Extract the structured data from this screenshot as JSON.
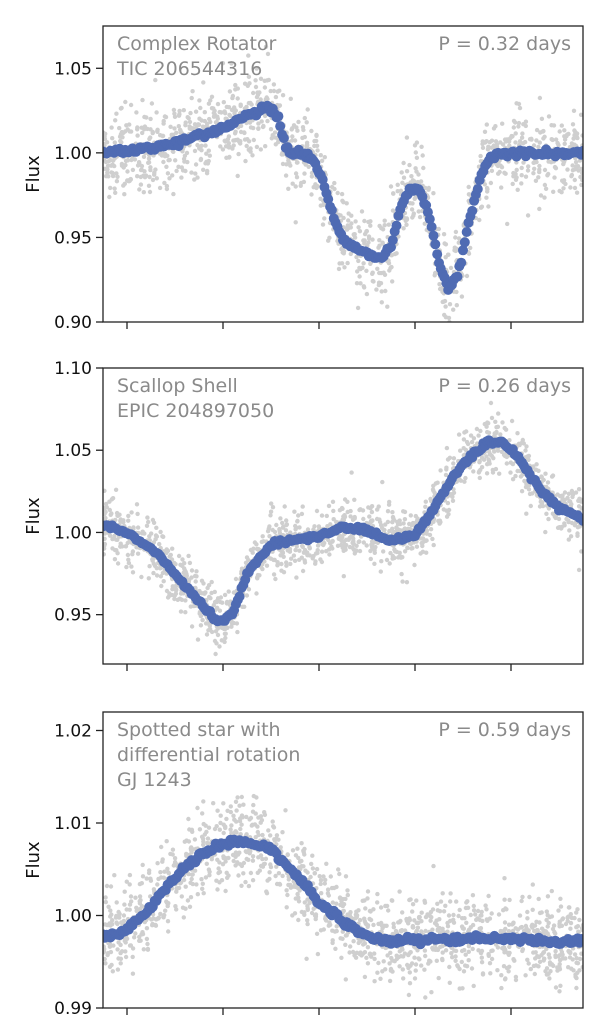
{
  "colors": {
    "binned": "#4f6bb3",
    "raw": "#cfcfcf",
    "annotation": "#8a8a8a",
    "axis": "#222222"
  },
  "chart_data": [
    {
      "type": "scatter",
      "title": "",
      "annotation_lines": [
        "Complex Rotator",
        "TIC 206544316"
      ],
      "period_label": "P = 0.32 days",
      "xlabel": "",
      "ylabel": "Flux",
      "xlim": [
        0,
        1
      ],
      "ylim": [
        0.9,
        1.075
      ],
      "yticks": [
        0.9,
        0.95,
        1.0,
        1.05
      ],
      "ytick_labels": [
        "0.90",
        "0.95",
        "1.00",
        "1.05"
      ],
      "xticks": [
        0.05,
        0.25,
        0.45,
        0.65,
        0.85
      ],
      "grid": false,
      "raw_scatter": 0.012,
      "series": [
        {
          "role": "binned",
          "x": [
            0.0,
            0.05,
            0.1,
            0.15,
            0.2,
            0.25,
            0.3,
            0.34,
            0.365,
            0.38,
            0.395,
            0.41,
            0.44,
            0.46,
            0.48,
            0.5,
            0.52,
            0.55,
            0.58,
            0.6,
            0.62,
            0.64,
            0.66,
            0.68,
            0.7,
            0.72,
            0.74,
            0.76,
            0.78,
            0.8,
            0.82,
            0.84,
            0.86,
            0.88,
            0.9,
            0.95,
            1.0
          ],
          "y": [
            1.0,
            1.001,
            1.003,
            1.006,
            1.01,
            1.015,
            1.022,
            1.027,
            1.021,
            1.004,
            0.999,
            1.0,
            0.996,
            0.982,
            0.962,
            0.949,
            0.945,
            0.94,
            0.938,
            0.945,
            0.968,
            0.98,
            0.978,
            0.962,
            0.935,
            0.919,
            0.928,
            0.955,
            0.98,
            0.995,
            1.0,
            1.0,
            1.0,
            1.0,
            1.0,
            1.0,
            1.0
          ]
        }
      ]
    },
    {
      "type": "scatter",
      "title": "",
      "annotation_lines": [
        "Scallop Shell",
        "EPIC 204897050"
      ],
      "period_label": "P = 0.26 days",
      "xlabel": "",
      "ylabel": "Flux",
      "xlim": [
        0,
        1
      ],
      "ylim": [
        0.92,
        1.1
      ],
      "yticks": [
        0.95,
        1.0,
        1.05,
        1.1
      ],
      "ytick_labels": [
        "0.95",
        "1.00",
        "1.05",
        "1.10"
      ],
      "xticks": [
        0.05,
        0.25,
        0.45,
        0.65,
        0.85
      ],
      "grid": false,
      "raw_scatter": 0.009,
      "series": [
        {
          "role": "binned",
          "x": [
            0.0,
            0.05,
            0.1,
            0.15,
            0.2,
            0.24,
            0.27,
            0.3,
            0.35,
            0.4,
            0.45,
            0.5,
            0.55,
            0.6,
            0.65,
            0.68,
            0.72,
            0.76,
            0.8,
            0.83,
            0.86,
            0.9,
            0.95,
            1.0
          ],
          "y": [
            1.005,
            1.0,
            0.99,
            0.975,
            0.958,
            0.945,
            0.95,
            0.975,
            0.993,
            0.995,
            0.998,
            1.003,
            1.001,
            0.995,
            0.998,
            1.01,
            1.03,
            1.045,
            1.054,
            1.055,
            1.048,
            1.03,
            1.015,
            1.008
          ]
        }
      ]
    },
    {
      "type": "scatter",
      "title": "",
      "annotation_lines": [
        "Spotted star with",
        "differential rotation",
        "GJ 1243"
      ],
      "period_label": "P = 0.59 days",
      "xlabel": "",
      "ylabel": "Flux",
      "xlim": [
        0,
        1
      ],
      "ylim": [
        0.99,
        1.022
      ],
      "yticks": [
        0.99,
        1.0,
        1.01,
        1.02
      ],
      "ytick_labels": [
        "0.99",
        "1.00",
        "1.01",
        "1.02"
      ],
      "xticks": [
        0.05,
        0.25,
        0.45,
        0.65,
        0.85
      ],
      "grid": false,
      "raw_scatter": 0.0023,
      "series": [
        {
          "role": "binned",
          "x": [
            0.0,
            0.05,
            0.1,
            0.15,
            0.2,
            0.25,
            0.3,
            0.35,
            0.4,
            0.45,
            0.5,
            0.55,
            0.6,
            0.65,
            0.7,
            0.75,
            0.8,
            0.85,
            0.9,
            0.95,
            1.0
          ],
          "y": [
            0.9975,
            0.9985,
            1.001,
            1.004,
            1.0065,
            1.0078,
            1.008,
            1.0072,
            1.0045,
            1.0015,
            0.9993,
            0.9977,
            0.9972,
            0.9973,
            0.9974,
            0.9974,
            0.9975,
            0.9976,
            0.9973,
            0.9972,
            0.9972
          ]
        }
      ]
    }
  ]
}
